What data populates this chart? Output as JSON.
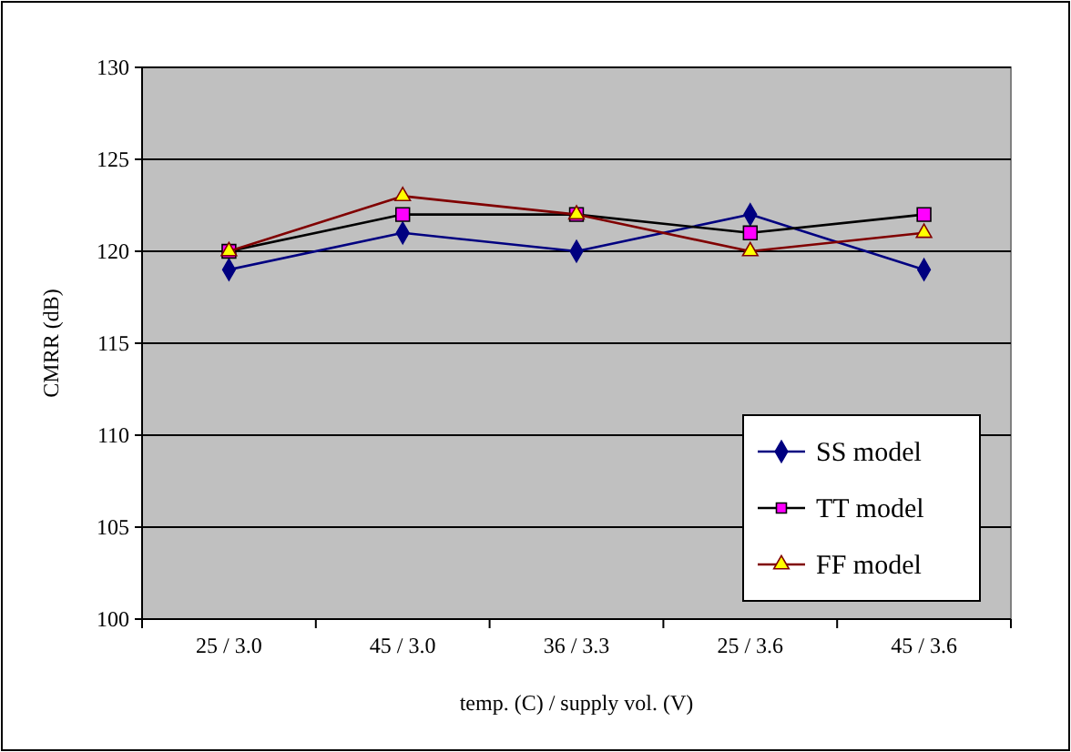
{
  "chart_data": {
    "type": "line",
    "xlabel": "temp. (C) / supply vol. (V)",
    "ylabel": "CMRR (dB)",
    "categories": [
      "25 / 3.0",
      "45 / 3.0",
      "36 / 3.3",
      "25 / 3.6",
      "45 / 3.6"
    ],
    "series": [
      {
        "name": "SS model",
        "color": "#000080",
        "marker": "diamond",
        "values": [
          119,
          121,
          120,
          122,
          119
        ]
      },
      {
        "name": "TT model",
        "color": "#000000",
        "marker": "square",
        "values": [
          120,
          122,
          122,
          121,
          122
        ]
      },
      {
        "name": "FF model",
        "color": "#800000",
        "marker": "triangle",
        "values": [
          120,
          123,
          122,
          120,
          121
        ]
      }
    ],
    "ylim": [
      100,
      130
    ],
    "yticks": [
      100,
      105,
      110,
      115,
      120,
      125,
      130
    ],
    "grid": "y",
    "legend": "bottom right"
  }
}
